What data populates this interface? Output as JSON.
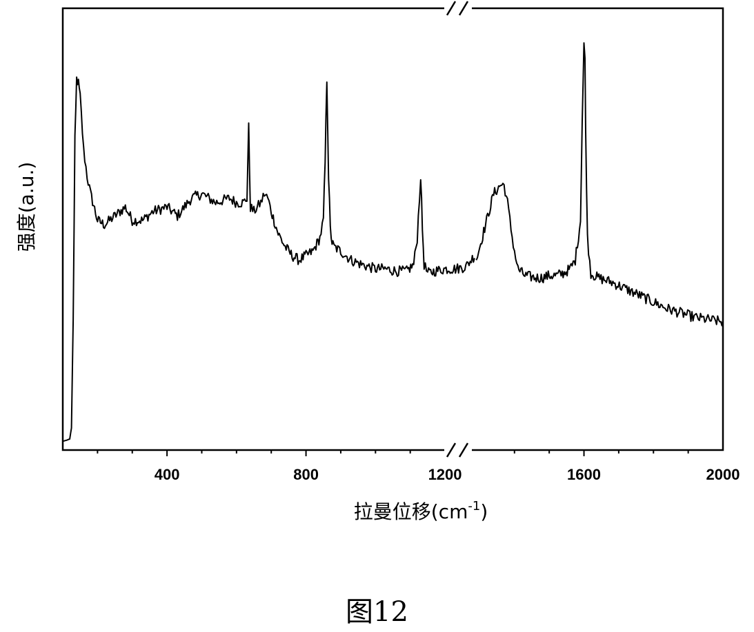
{
  "chart_data": {
    "type": "line",
    "title": "",
    "xlabel": "拉曼位移(cm",
    "xlabel_sup": "-1",
    "xlabel_end": ")",
    "ylabel": "强度(a.u.)",
    "x_ticks": [
      "400",
      "800",
      "1200",
      "1600",
      "2000"
    ],
    "axis_break": "//",
    "xlim": [
      100,
      2000
    ],
    "ylim": [
      0,
      100
    ],
    "y_tick_labels": false,
    "grid": false,
    "legend": "none",
    "line_color": "#000000",
    "series": [
      {
        "x": [
          100,
          110,
          120,
          125,
          130,
          135,
          140,
          145,
          150,
          160,
          170,
          180,
          200,
          220,
          250,
          280,
          300,
          330,
          360,
          400,
          430,
          470,
          500,
          540,
          580,
          600,
          620,
          630,
          635,
          640,
          650,
          660,
          670,
          680,
          690,
          700,
          720,
          740,
          760,
          780,
          800,
          820,
          840,
          850,
          855,
          860,
          865,
          870,
          875,
          880,
          900,
          930,
          960,
          1000,
          1030,
          1060,
          1090,
          1110,
          1120,
          1130,
          1135,
          1140,
          1150,
          1170,
          1200,
          1230,
          1260,
          1285
        ],
        "y": [
          2.0,
          2.2,
          2.5,
          5,
          30,
          70,
          84,
          83,
          80,
          68,
          62,
          58,
          52,
          51,
          53,
          55,
          52,
          52,
          54,
          55,
          53,
          57,
          58,
          56,
          57,
          56,
          56,
          57,
          73,
          55,
          54,
          55,
          56,
          58,
          57,
          54,
          49,
          46,
          44,
          43,
          44,
          45,
          48,
          52,
          65,
          84,
          62,
          50,
          47,
          46,
          45,
          43,
          42,
          41,
          41,
          40.5,
          40.5,
          42,
          48,
          62,
          50,
          42,
          40,
          40.5,
          41,
          41,
          41.5,
          44
        ]
      },
      {
        "x": [
          1290,
          1300,
          1320,
          1340,
          1360,
          1370,
          1380,
          1390,
          1400,
          1410,
          1430,
          1460,
          1480,
          1500,
          1520,
          1540,
          1560,
          1575,
          1590,
          1595,
          1600,
          1603,
          1605,
          1610,
          1620,
          1640,
          1680,
          1720,
          1760,
          1800,
          1840,
          1880,
          1920,
          1960,
          2000
        ],
        "y": [
          43,
          46,
          52,
          58,
          60,
          60,
          56,
          50,
          45,
          41,
          39.5,
          39,
          39,
          39.5,
          39.5,
          40,
          41,
          43,
          52,
          75,
          92,
          88,
          72,
          48,
          40,
          39,
          38,
          36.5,
          35,
          33.5,
          32,
          31,
          30,
          29.5,
          29
        ]
      }
    ]
  },
  "caption": "图12"
}
